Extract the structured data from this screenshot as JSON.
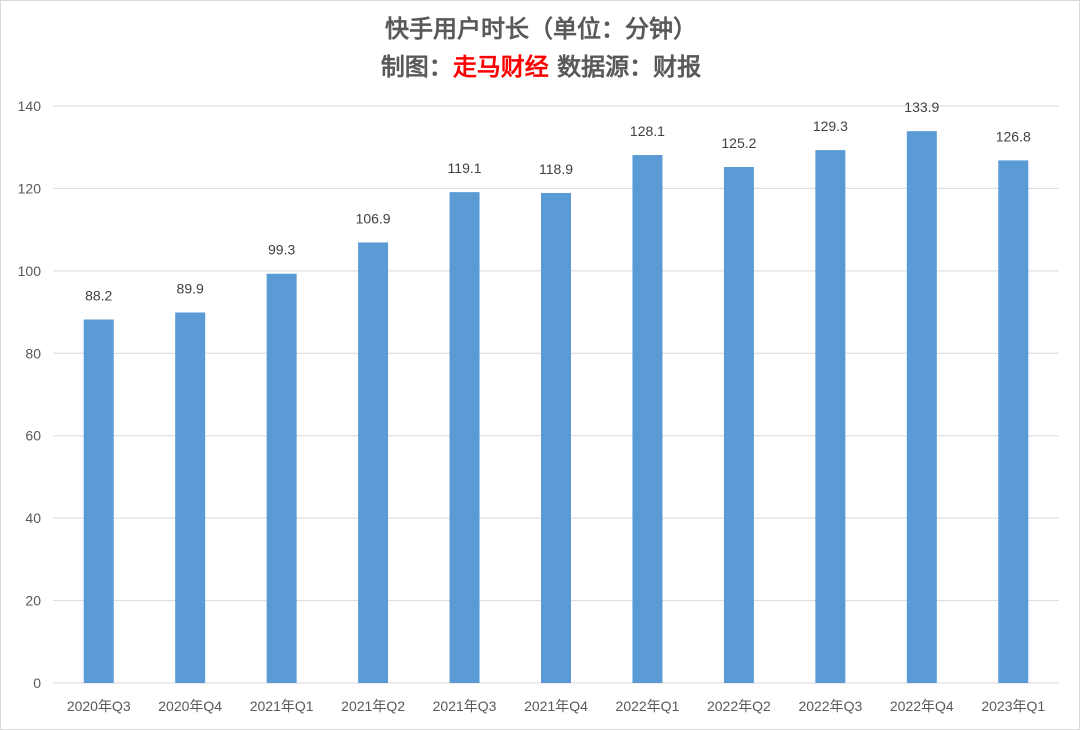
{
  "chart_data": {
    "type": "bar",
    "title_line1": "快手用户时长（单位：分钟）",
    "title_line2": {
      "prefix": "制图：",
      "brand": "走马财经",
      "suffix": " 数据源：财报"
    },
    "categories": [
      "2020年Q3",
      "2020年Q4",
      "2021年Q1",
      "2021年Q2",
      "2021年Q3",
      "2021年Q4",
      "2022年Q1",
      "2022年Q2",
      "2022年Q3",
      "2022年Q4",
      "2023年Q1"
    ],
    "values": [
      88.2,
      89.9,
      99.3,
      106.9,
      119.1,
      118.9,
      128.1,
      125.2,
      129.3,
      133.9,
      126.8
    ],
    "data_labels": [
      "88.2",
      "89.9",
      "99.3",
      "106.9",
      "119.1",
      "118.9",
      "128.1",
      "125.2",
      "129.3",
      "133.9",
      "126.8"
    ],
    "ylim": [
      0,
      140
    ],
    "yticks": [
      0,
      20,
      40,
      60,
      80,
      100,
      120,
      140
    ],
    "grid": true,
    "legend": "none",
    "colors": {
      "bar": "#5b9bd5",
      "grid": "#d9d9d9",
      "brand": "#ff0000"
    }
  }
}
